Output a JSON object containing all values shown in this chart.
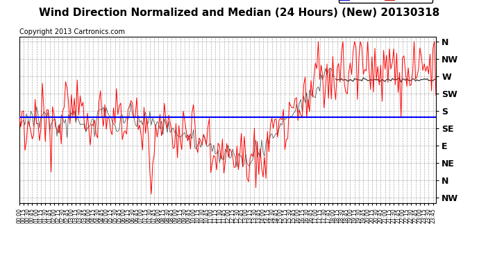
{
  "title": "Wind Direction Normalized and Median (24 Hours) (New) 20130318",
  "copyright": "Copyright 2013 Cartronics.com",
  "ytick_labels": [
    "N",
    "NW",
    "W",
    "SW",
    "S",
    "SE",
    "E",
    "NE",
    "N",
    "NW"
  ],
  "ytick_values": [
    0,
    1,
    2,
    3,
    4,
    5,
    6,
    7,
    8,
    9
  ],
  "average_line_y": 4.35,
  "median_line_y": 2.2,
  "background_color": "#ffffff",
  "plot_bg_color": "#ffffff",
  "grid_color": "#999999",
  "red_line_color": "#ff0000",
  "dark_line_color": "#333333",
  "blue_line_color": "#0000ff",
  "legend_avg_color": "#0000cc",
  "legend_dir_color": "#cc0000",
  "title_fontsize": 11,
  "copyright_fontsize": 7,
  "num_points": 288
}
